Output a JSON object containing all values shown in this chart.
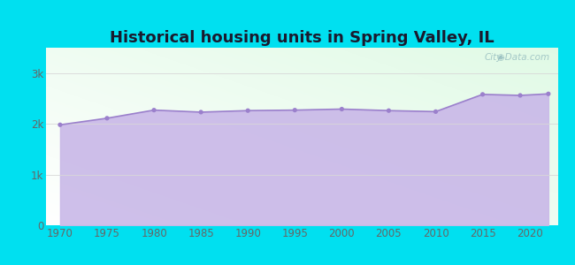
{
  "title": "Historical housing units in Spring Valley, IL",
  "title_fontsize": 13,
  "title_fontweight": "bold",
  "title_color": "#1a1a2e",
  "background_color": "#00e0f0",
  "fill_color": "#c9b8e8",
  "line_color": "#9b80cc",
  "marker_color": "#9b80cc",
  "grid_color": "#d8d8d8",
  "years": [
    1970,
    1975,
    1980,
    1985,
    1990,
    1995,
    2000,
    2005,
    2010,
    2015,
    2019,
    2022
  ],
  "values": [
    1980,
    2110,
    2270,
    2230,
    2260,
    2270,
    2290,
    2260,
    2240,
    2580,
    2560,
    2590
  ],
  "ytick_labels": [
    "0",
    "1k",
    "2k",
    "3k"
  ],
  "ytick_values": [
    0,
    1000,
    2000,
    3000
  ],
  "ylim": [
    0,
    3500
  ],
  "xlim": [
    1968.5,
    2023
  ],
  "xticks": [
    1970,
    1975,
    1980,
    1985,
    1990,
    1995,
    2000,
    2005,
    2010,
    2015,
    2020
  ],
  "watermark": "City-Data.com"
}
